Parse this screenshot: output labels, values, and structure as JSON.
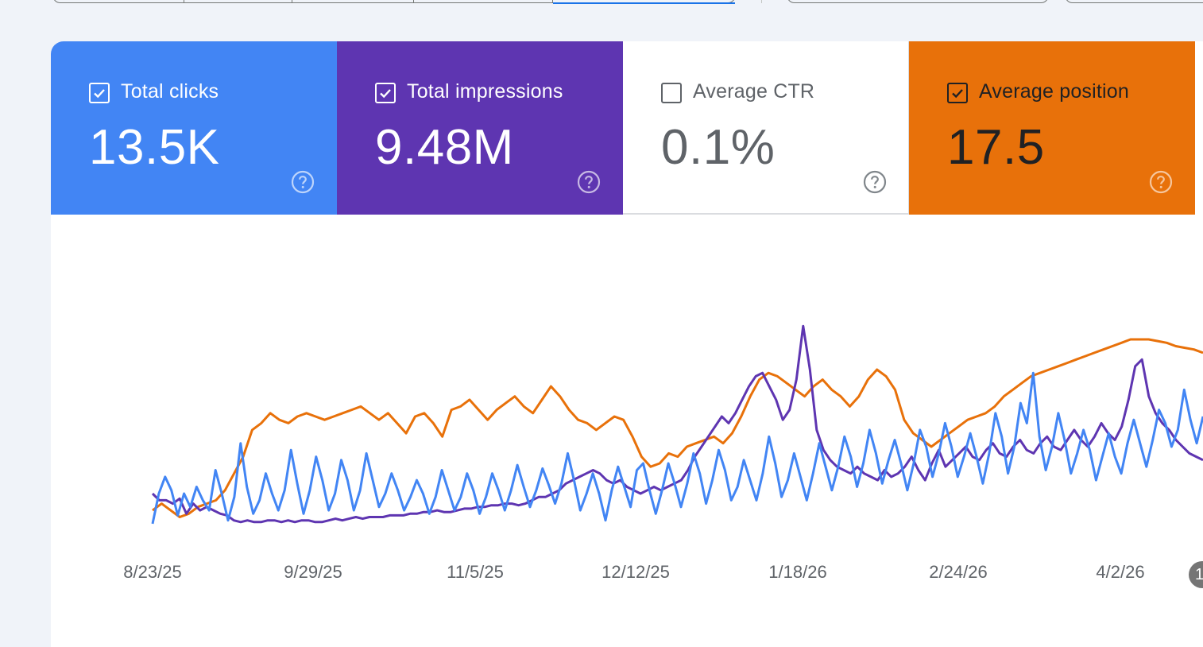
{
  "metrics": [
    {
      "id": "clicks",
      "label": "Total clicks",
      "value": "13.5K",
      "checked": true,
      "color": "#4285f4"
    },
    {
      "id": "impressions",
      "label": "Total impressions",
      "value": "9.48M",
      "checked": true,
      "color": "#5e35b1"
    },
    {
      "id": "ctr",
      "label": "Average CTR",
      "value": "0.1%",
      "checked": false,
      "color": "#ffffff"
    },
    {
      "id": "position",
      "label": "Average position",
      "value": "17.5",
      "checked": true,
      "color": "#e8710a"
    }
  ],
  "icons": {
    "check": "checkbox-icon",
    "help": "help-circle-icon"
  },
  "chart_data": {
    "type": "line",
    "x_tick_labels": [
      "8/23/25",
      "9/29/25",
      "11/5/25",
      "12/12/25",
      "1/18/26",
      "2/24/26",
      "4/2/26"
    ],
    "x_range": [
      "8/23/25",
      "4/22/26"
    ],
    "grid": false,
    "legend": "none",
    "y_axis_visible": false,
    "series": [
      {
        "name": "Total clicks",
        "color": "#4285f4",
        "values": [
          0.1,
          0.28,
          0.38,
          0.3,
          0.15,
          0.28,
          0.2,
          0.32,
          0.24,
          0.18,
          0.42,
          0.28,
          0.12,
          0.26,
          0.58,
          0.32,
          0.16,
          0.24,
          0.4,
          0.28,
          0.18,
          0.3,
          0.54,
          0.34,
          0.16,
          0.3,
          0.5,
          0.36,
          0.18,
          0.28,
          0.48,
          0.36,
          0.18,
          0.3,
          0.52,
          0.36,
          0.2,
          0.28,
          0.4,
          0.3,
          0.18,
          0.26,
          0.36,
          0.28,
          0.16,
          0.26,
          0.42,
          0.3,
          0.18,
          0.26,
          0.4,
          0.3,
          0.16,
          0.26,
          0.4,
          0.3,
          0.18,
          0.3,
          0.45,
          0.32,
          0.2,
          0.3,
          0.43,
          0.33,
          0.22,
          0.34,
          0.52,
          0.36,
          0.18,
          0.28,
          0.4,
          0.28,
          0.12,
          0.3,
          0.44,
          0.32,
          0.2,
          0.42,
          0.46,
          0.3,
          0.16,
          0.3,
          0.46,
          0.34,
          0.2,
          0.34,
          0.52,
          0.4,
          0.22,
          0.36,
          0.54,
          0.42,
          0.24,
          0.32,
          0.48,
          0.36,
          0.24,
          0.4,
          0.62,
          0.46,
          0.26,
          0.36,
          0.52,
          0.38,
          0.24,
          0.4,
          0.58,
          0.44,
          0.3,
          0.44,
          0.62,
          0.5,
          0.32,
          0.46,
          0.66,
          0.52,
          0.34,
          0.48,
          0.6,
          0.46,
          0.3,
          0.46,
          0.66,
          0.56,
          0.38,
          0.52,
          0.7,
          0.56,
          0.38,
          0.5,
          0.64,
          0.5,
          0.34,
          0.52,
          0.76,
          0.62,
          0.4,
          0.56,
          0.82,
          0.7,
          1.0,
          0.62,
          0.42,
          0.56,
          0.76,
          0.6,
          0.4,
          0.52,
          0.66,
          0.54,
          0.36,
          0.5,
          0.64,
          0.5,
          0.4,
          0.58,
          0.72,
          0.58,
          0.44,
          0.6,
          0.78,
          0.7,
          0.56,
          0.66,
          0.9,
          0.72,
          0.58,
          0.74
        ]
      },
      {
        "name": "Total impressions",
        "color": "#5e35b1",
        "values": [
          0.28,
          0.24,
          0.24,
          0.22,
          0.25,
          0.16,
          0.22,
          0.18,
          0.2,
          0.18,
          0.16,
          0.15,
          0.12,
          0.11,
          0.12,
          0.11,
          0.11,
          0.12,
          0.12,
          0.11,
          0.12,
          0.11,
          0.12,
          0.12,
          0.11,
          0.11,
          0.12,
          0.13,
          0.12,
          0.13,
          0.14,
          0.13,
          0.14,
          0.14,
          0.14,
          0.15,
          0.15,
          0.15,
          0.16,
          0.16,
          0.17,
          0.17,
          0.18,
          0.17,
          0.17,
          0.18,
          0.19,
          0.19,
          0.2,
          0.2,
          0.21,
          0.21,
          0.22,
          0.22,
          0.21,
          0.22,
          0.24,
          0.26,
          0.26,
          0.28,
          0.3,
          0.34,
          0.36,
          0.38,
          0.4,
          0.42,
          0.4,
          0.36,
          0.34,
          0.36,
          0.32,
          0.3,
          0.28,
          0.3,
          0.32,
          0.3,
          0.32,
          0.34,
          0.36,
          0.42,
          0.5,
          0.56,
          0.62,
          0.68,
          0.74,
          0.7,
          0.76,
          0.84,
          0.92,
          0.98,
          1.0,
          0.92,
          0.84,
          0.72,
          0.78,
          0.96,
          1.28,
          1.02,
          0.66,
          0.54,
          0.48,
          0.44,
          0.42,
          0.4,
          0.44,
          0.4,
          0.38,
          0.36,
          0.42,
          0.38,
          0.4,
          0.44,
          0.5,
          0.42,
          0.36,
          0.46,
          0.54,
          0.44,
          0.48,
          0.52,
          0.56,
          0.5,
          0.48,
          0.54,
          0.58,
          0.52,
          0.5,
          0.56,
          0.6,
          0.54,
          0.52,
          0.58,
          0.62,
          0.56,
          0.54,
          0.6,
          0.66,
          0.6,
          0.56,
          0.62,
          0.7,
          0.64,
          0.6,
          0.68,
          0.84,
          1.04,
          1.08,
          0.86,
          0.76,
          0.7,
          0.66,
          0.6,
          0.56,
          0.52,
          0.5,
          0.48
        ]
      },
      {
        "name": "Average position",
        "color": "#e8710a",
        "values": [
          0.18,
          0.22,
          0.18,
          0.14,
          0.16,
          0.2,
          0.22,
          0.24,
          0.3,
          0.4,
          0.5,
          0.66,
          0.7,
          0.76,
          0.72,
          0.7,
          0.74,
          0.76,
          0.74,
          0.72,
          0.74,
          0.76,
          0.78,
          0.8,
          0.76,
          0.72,
          0.76,
          0.7,
          0.64,
          0.74,
          0.76,
          0.7,
          0.62,
          0.78,
          0.8,
          0.84,
          0.78,
          0.72,
          0.78,
          0.82,
          0.86,
          0.8,
          0.76,
          0.84,
          0.92,
          0.86,
          0.78,
          0.72,
          0.7,
          0.66,
          0.7,
          0.74,
          0.72,
          0.62,
          0.5,
          0.44,
          0.46,
          0.52,
          0.5,
          0.56,
          0.58,
          0.6,
          0.62,
          0.58,
          0.64,
          0.74,
          0.86,
          0.96,
          1.0,
          0.98,
          0.94,
          0.9,
          0.86,
          0.92,
          0.96,
          0.9,
          0.86,
          0.8,
          0.86,
          0.96,
          1.02,
          0.98,
          0.9,
          0.72,
          0.64,
          0.6,
          0.56,
          0.6,
          0.64,
          0.68,
          0.72,
          0.74,
          0.76,
          0.8,
          0.86,
          0.9,
          0.94,
          0.98,
          1.0,
          1.02,
          1.04,
          1.06,
          1.08,
          1.1,
          1.12,
          1.14,
          1.16,
          1.18,
          1.2,
          1.2,
          1.2,
          1.19,
          1.18,
          1.16,
          1.15,
          1.14,
          1.12
        ]
      }
    ]
  }
}
